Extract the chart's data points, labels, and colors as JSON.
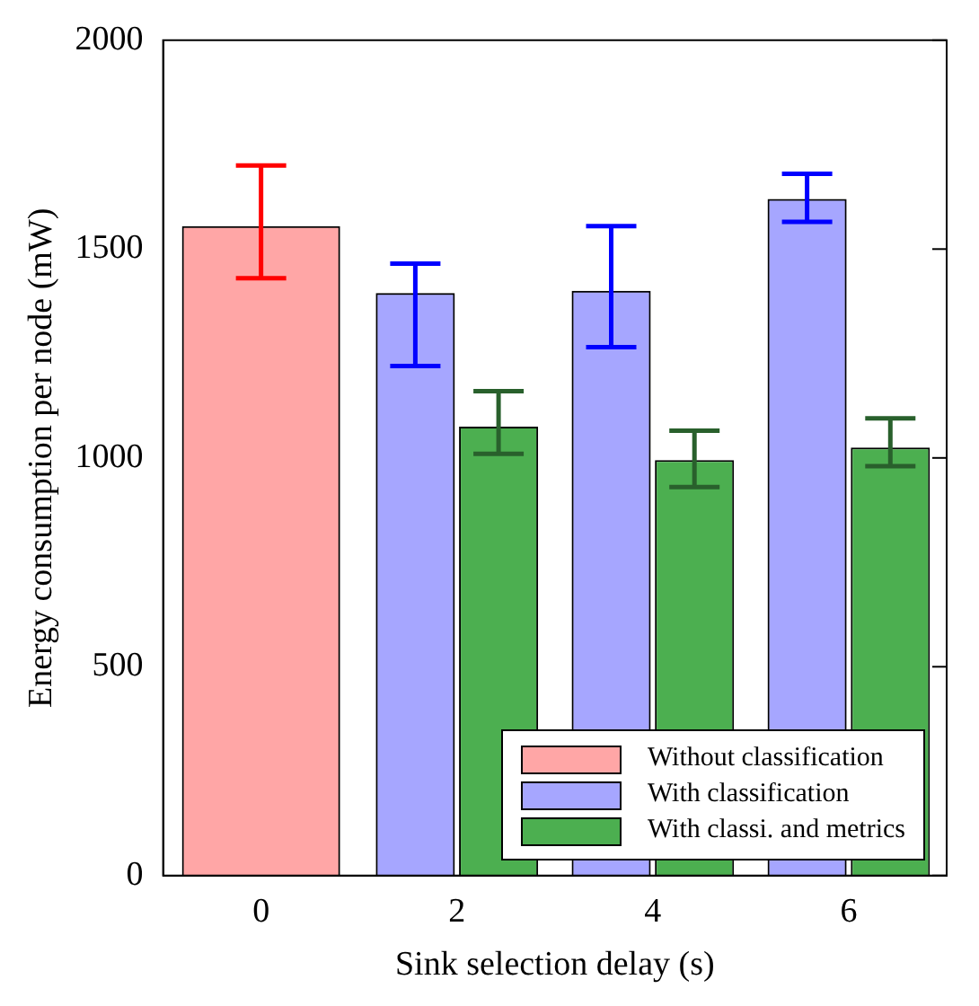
{
  "chart_data": {
    "type": "bar",
    "xlabel": "Sink selection delay (s)",
    "ylabel": "Energy consumption per node (mW)",
    "categories": [
      "0",
      "2",
      "4",
      "6"
    ],
    "ylim": [
      0,
      2000
    ],
    "yticks": [
      0,
      500,
      1000,
      1500,
      2000
    ],
    "grid": false,
    "legend": "bottom right",
    "series": [
      {
        "name": "Without classification",
        "color": "#ff0000",
        "values": [
          1555,
          null,
          null,
          null
        ],
        "errors": [
          [
            1430,
            1700
          ],
          null,
          null,
          null
        ]
      },
      {
        "name": "With classification",
        "color": "#0000ff",
        "values": [
          null,
          1395,
          1400,
          1620
        ],
        "errors": [
          null,
          [
            1220,
            1465
          ],
          [
            1265,
            1555
          ],
          [
            1565,
            1680
          ]
        ]
      },
      {
        "name": "With classi. and metrics",
        "color": "#4caf50",
        "values": [
          null,
          1075,
          995,
          1025
        ],
        "errors": [
          null,
          [
            1010,
            1160
          ],
          [
            930,
            1065
          ],
          [
            980,
            1095
          ]
        ]
      }
    ]
  }
}
